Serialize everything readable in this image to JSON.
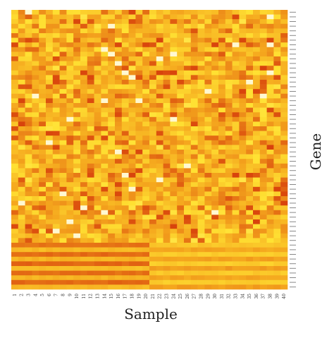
{
  "chart_data": {
    "type": "heatmap",
    "title": "",
    "xlabel": "Sample",
    "ylabel": "Gene",
    "x_categories": [
      "1",
      "2",
      "3",
      "4",
      "5",
      "6",
      "7",
      "8",
      "9",
      "10",
      "11",
      "12",
      "13",
      "14",
      "15",
      "16",
      "17",
      "18",
      "19",
      "20",
      "21",
      "22",
      "23",
      "24",
      "25",
      "26",
      "27",
      "28",
      "29",
      "30",
      "31",
      "32",
      "33",
      "34",
      "35",
      "36",
      "37",
      "38",
      "39",
      "40"
    ],
    "n_rows": 60,
    "row_labels_visible": false,
    "grid": false,
    "legend": "none",
    "colorscale": {
      "low": "#ffffff",
      "mid_low": "#ffe233",
      "mid": "#f5a81e",
      "high": "#d8420c"
    },
    "value_range": [
      0,
      1
    ],
    "pattern": {
      "top_rows": 50,
      "top_description_values": "random moderate intensity mix",
      "bottom_rows": 10,
      "bottom_group_split_after_sample": "20",
      "bottom_left_values": [
        0.78,
        0.45,
        0.82,
        0.48,
        0.84,
        0.43,
        0.8,
        0.47,
        0.83,
        0.46
      ],
      "bottom_right_values": [
        0.38,
        0.55,
        0.35,
        0.58,
        0.34,
        0.6,
        0.36,
        0.56,
        0.35,
        0.59
      ]
    }
  }
}
